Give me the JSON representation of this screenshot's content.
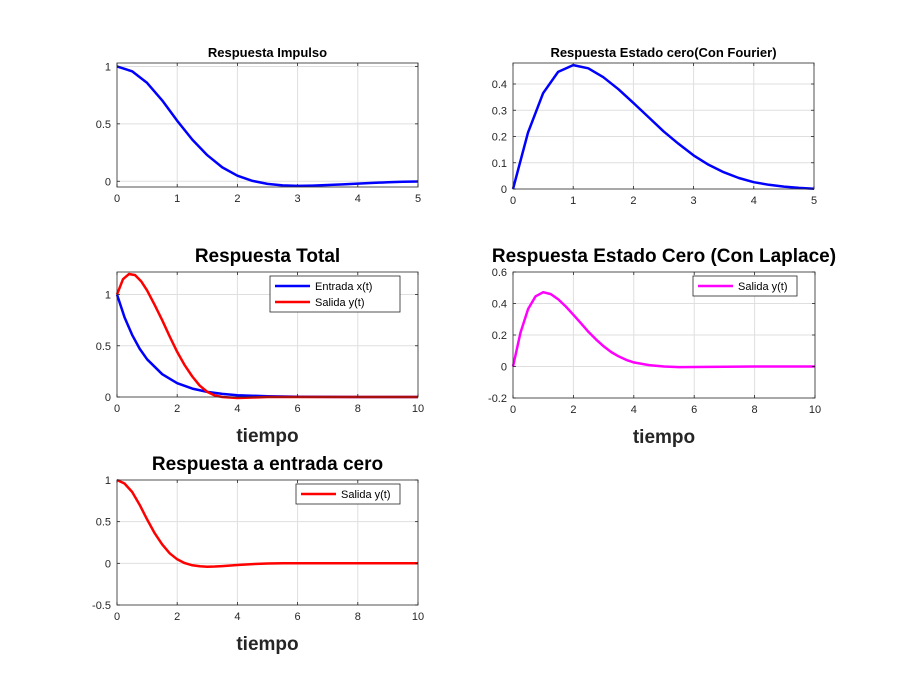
{
  "figure": {
    "background": "#ffffff",
    "axes_color": "#262626",
    "grid_color": "#dfdfdf"
  },
  "chart_data": [
    {
      "type": "line",
      "title": "Respuesta Impulso",
      "xlabel": "",
      "xlim": [
        0,
        5
      ],
      "ylim": [
        -0.05,
        1.03
      ],
      "xticks": [
        0,
        1,
        2,
        3,
        4,
        5
      ],
      "yticks": [
        0,
        0.5,
        1
      ],
      "xtick_labels": [
        "0",
        "1",
        "2",
        "3",
        "4",
        "5"
      ],
      "ytick_labels": [
        "0",
        "0.5",
        "1"
      ],
      "grid": true,
      "legend": null,
      "series": [
        {
          "color": "#0000ff",
          "x": [
            0,
            0.25,
            0.5,
            0.75,
            1,
            1.25,
            1.5,
            1.75,
            2,
            2.25,
            2.5,
            2.75,
            3,
            3.25,
            3.5,
            3.75,
            4,
            4.25,
            4.5,
            4.75,
            5
          ],
          "y": [
            1.0,
            0.958,
            0.857,
            0.704,
            0.527,
            0.363,
            0.227,
            0.121,
            0.048,
            0.003,
            -0.023,
            -0.036,
            -0.04,
            -0.038,
            -0.033,
            -0.027,
            -0.02,
            -0.014,
            -0.009,
            -0.005,
            -0.002
          ]
        }
      ]
    },
    {
      "type": "line",
      "title": "Respuesta Estado cero(Con Fourier)",
      "xlabel": "",
      "xlim": [
        0,
        5
      ],
      "ylim": [
        0,
        0.48
      ],
      "xticks": [
        0,
        1,
        2,
        3,
        4,
        5
      ],
      "yticks": [
        0,
        0.1,
        0.2,
        0.3,
        0.4
      ],
      "xtick_labels": [
        "0",
        "1",
        "2",
        "3",
        "4",
        "5"
      ],
      "ytick_labels": [
        "0",
        "0.1",
        "0.2",
        "0.3",
        "0.4"
      ],
      "grid": true,
      "legend": null,
      "series": [
        {
          "color": "#0000ff",
          "x": [
            0,
            0.25,
            0.5,
            0.75,
            1,
            1.25,
            1.5,
            1.75,
            2,
            2.25,
            2.5,
            2.75,
            3,
            3.25,
            3.5,
            3.75,
            4,
            4.25,
            4.5,
            4.75,
            5
          ],
          "y": [
            0,
            0.215,
            0.365,
            0.446,
            0.472,
            0.46,
            0.426,
            0.38,
            0.328,
            0.274,
            0.22,
            0.172,
            0.128,
            0.092,
            0.064,
            0.042,
            0.026,
            0.016,
            0.009,
            0.004,
            0.001
          ]
        }
      ]
    },
    {
      "type": "line",
      "title": "Respuesta Total",
      "xlabel": "tiempo",
      "xlim": [
        0,
        10
      ],
      "ylim": [
        0,
        1.22
      ],
      "xticks": [
        0,
        2,
        4,
        6,
        8,
        10
      ],
      "yticks": [
        0,
        0.5,
        1
      ],
      "xtick_labels": [
        "0",
        "2",
        "4",
        "6",
        "8",
        "10"
      ],
      "ytick_labels": [
        "0",
        "0.5",
        "1"
      ],
      "grid": true,
      "legend": "top-right",
      "series": [
        {
          "name": "Entrada x(t)",
          "color": "#0000ff",
          "x": [
            0,
            0.25,
            0.5,
            0.75,
            1,
            1.5,
            2,
            2.5,
            3,
            3.5,
            4,
            5,
            6,
            7,
            8,
            9,
            10
          ],
          "y": [
            1.0,
            0.779,
            0.607,
            0.472,
            0.368,
            0.223,
            0.135,
            0.082,
            0.05,
            0.03,
            0.018,
            0.007,
            0.002,
            0.001,
            0,
            0,
            0
          ]
        },
        {
          "name": "Salida y(t)",
          "color": "#ff0000",
          "x": [
            0,
            0.2,
            0.4,
            0.6,
            0.8,
            1,
            1.25,
            1.5,
            1.75,
            2,
            2.25,
            2.5,
            2.75,
            3,
            3.25,
            3.5,
            4,
            4.5,
            5,
            6,
            7,
            8,
            10
          ],
          "y": [
            1.0,
            1.15,
            1.2,
            1.19,
            1.13,
            1.04,
            0.9,
            0.75,
            0.59,
            0.44,
            0.31,
            0.2,
            0.11,
            0.05,
            0.015,
            0.0,
            -0.01,
            -0.005,
            0,
            0,
            0,
            0,
            0
          ]
        }
      ]
    },
    {
      "type": "line",
      "title": "Respuesta Estado Cero (Con Laplace)",
      "xlabel": "tiempo",
      "xlim": [
        0,
        10
      ],
      "ylim": [
        -0.2,
        0.6
      ],
      "xticks": [
        0,
        2,
        4,
        6,
        8,
        10
      ],
      "yticks": [
        -0.2,
        0,
        0.2,
        0.4,
        0.6
      ],
      "xtick_labels": [
        "0",
        "2",
        "4",
        "6",
        "8",
        "10"
      ],
      "ytick_labels": [
        "-0.2",
        "0",
        "0.2",
        "0.4",
        "0.6"
      ],
      "grid": true,
      "legend": "top-right",
      "series": [
        {
          "name": "Salida y(t)",
          "color": "#ff00ff",
          "x": [
            0,
            0.25,
            0.5,
            0.75,
            1,
            1.25,
            1.5,
            1.75,
            2,
            2.25,
            2.5,
            2.75,
            3,
            3.25,
            3.5,
            3.75,
            4,
            4.5,
            5,
            5.5,
            6,
            7,
            8,
            9,
            10
          ],
          "y": [
            0,
            0.215,
            0.365,
            0.446,
            0.472,
            0.46,
            0.426,
            0.38,
            0.328,
            0.274,
            0.22,
            0.172,
            0.128,
            0.092,
            0.064,
            0.042,
            0.026,
            0.009,
            0.0,
            -0.004,
            -0.003,
            -0.001,
            0,
            0,
            0
          ]
        }
      ]
    },
    {
      "type": "line",
      "title": "Respuesta a entrada cero",
      "xlabel": "tiempo",
      "xlim": [
        0,
        10
      ],
      "ylim": [
        -0.5,
        1.0
      ],
      "xticks": [
        0,
        2,
        4,
        6,
        8,
        10
      ],
      "yticks": [
        -0.5,
        0,
        0.5,
        1
      ],
      "xtick_labels": [
        "0",
        "2",
        "4",
        "6",
        "8",
        "10"
      ],
      "ytick_labels": [
        "-0.5",
        "0",
        "0.5",
        "1"
      ],
      "grid": true,
      "legend": "top-right",
      "series": [
        {
          "name": "Salida y(t)",
          "color": "#ff0000",
          "x": [
            0,
            0.25,
            0.5,
            0.75,
            1,
            1.25,
            1.5,
            1.75,
            2,
            2.25,
            2.5,
            2.75,
            3,
            3.25,
            3.5,
            4,
            4.5,
            5,
            5.5,
            6,
            7,
            8,
            9,
            10
          ],
          "y": [
            1.0,
            0.958,
            0.857,
            0.704,
            0.527,
            0.363,
            0.227,
            0.121,
            0.048,
            0.003,
            -0.023,
            -0.036,
            -0.04,
            -0.038,
            -0.033,
            -0.02,
            -0.009,
            -0.002,
            0.0,
            0.001,
            0.0,
            0,
            0,
            0
          ]
        }
      ]
    }
  ]
}
